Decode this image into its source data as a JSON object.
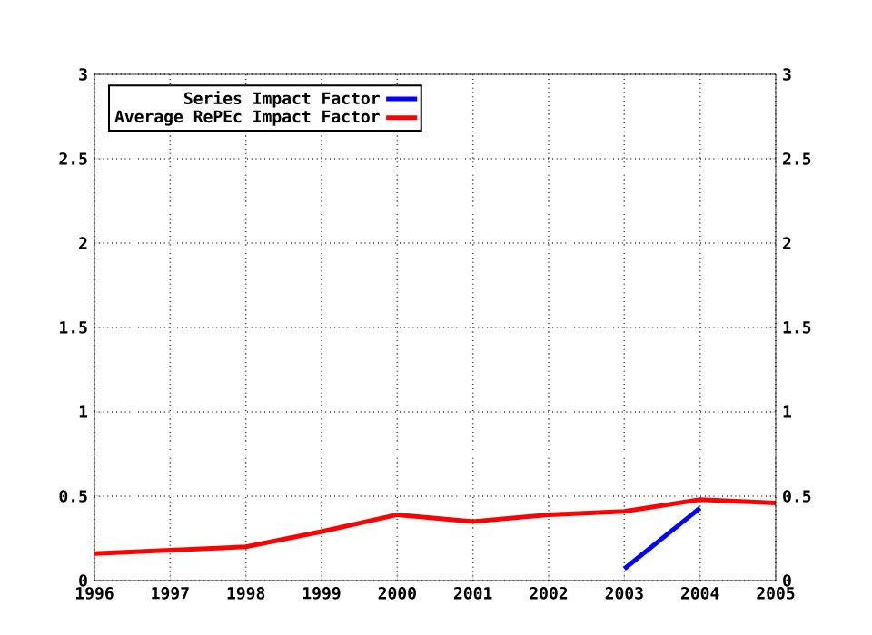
{
  "chart_data": {
    "type": "line",
    "x": [
      1996,
      1997,
      1998,
      1999,
      2000,
      2001,
      2002,
      2003,
      2004,
      2005
    ],
    "series": [
      {
        "name": "Series Impact Factor",
        "color": "#0000ff",
        "x": [
          2003,
          2004
        ],
        "values": [
          0.07,
          0.43
        ]
      },
      {
        "name": "Average RePEc Impact Factor",
        "color": "#ff0000",
        "values": [
          0.16,
          0.18,
          0.2,
          0.29,
          0.39,
          0.35,
          0.39,
          0.41,
          0.48,
          0.46
        ]
      }
    ],
    "xlim": [
      1996,
      2005
    ],
    "xticks": [
      1996,
      1997,
      1998,
      1999,
      2000,
      2001,
      2002,
      2003,
      2004,
      2005
    ],
    "ylim": [
      0,
      3
    ],
    "yticks": [
      0,
      0.5,
      1,
      1.5,
      2,
      2.5,
      3
    ],
    "y2lim": [
      0,
      3
    ],
    "y2ticks": [
      0,
      0.5,
      1,
      1.5,
      2,
      2.5,
      3
    ],
    "grid": true,
    "legend": "top left",
    "line_style": "solid",
    "marker": "none"
  }
}
